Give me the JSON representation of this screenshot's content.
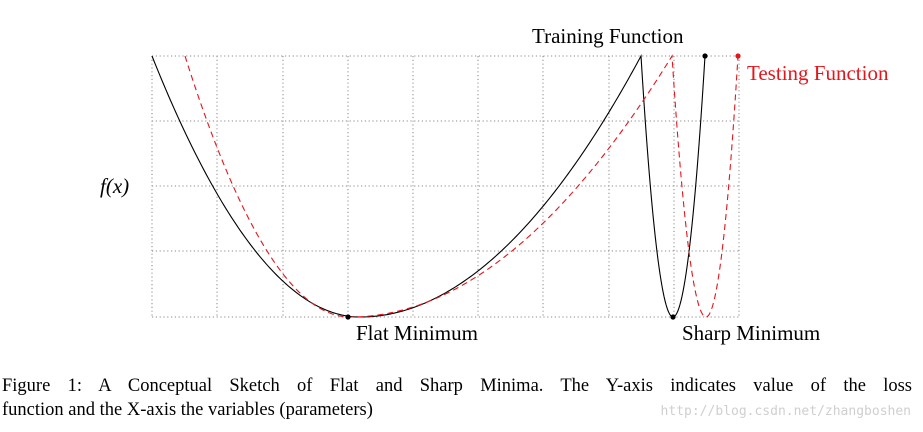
{
  "figure": {
    "y_label": "f(x)",
    "labels": {
      "training": "Training Function",
      "testing": "Testing Function",
      "flat_minimum": "Flat Minimum",
      "sharp_minimum": "Sharp Minimum"
    },
    "colors": {
      "training": "#000000",
      "testing": "#e4161c",
      "grid": "#8a8a8a"
    }
  },
  "caption": {
    "line1": "Figure 1:  A Conceptual Sketch of Flat and Sharp Minima.  The Y-axis indicates value of the loss",
    "line2": "function and the X-axis the variables (parameters)"
  },
  "watermark": "http://blog.csdn.net/zhangboshen"
}
